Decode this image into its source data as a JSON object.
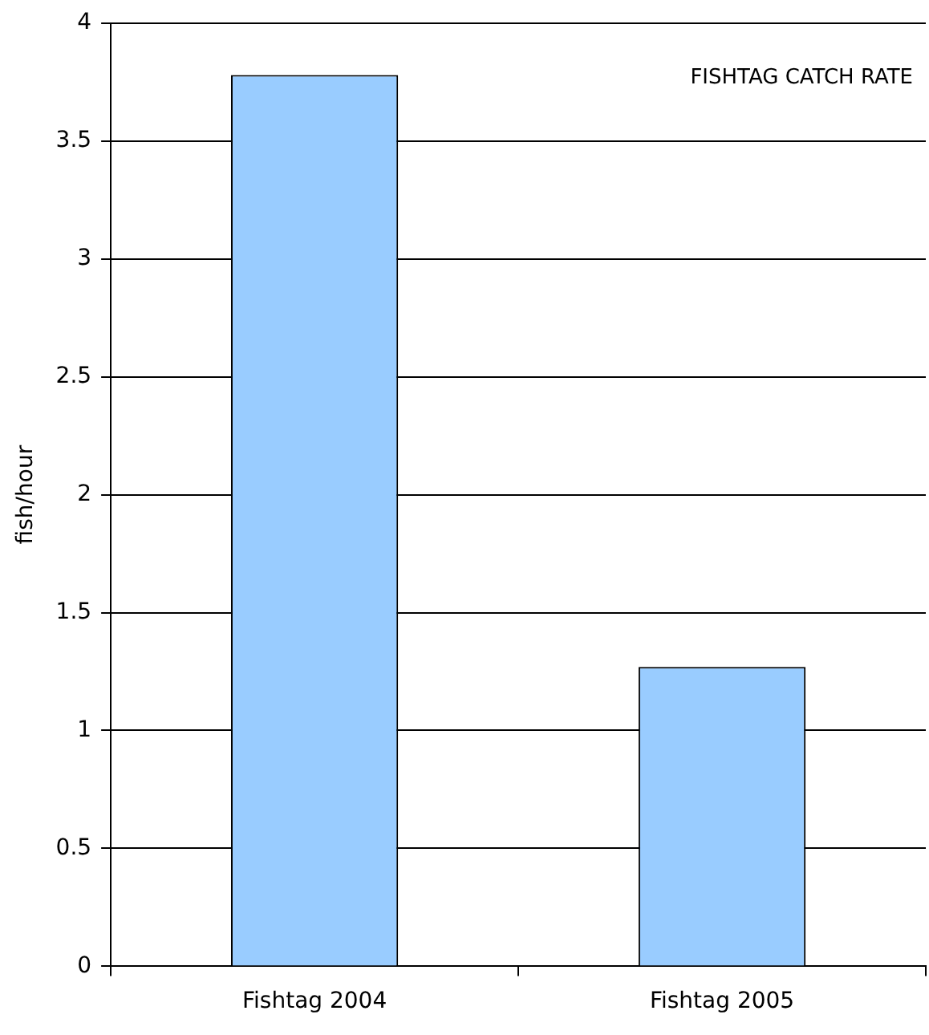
{
  "chart_data": {
    "type": "bar",
    "title": "FISHTAG CATCH RATE",
    "ylabel": "fish/hour",
    "categories": [
      "Fishtag 2004",
      "Fishtag 2005"
    ],
    "values": [
      3.78,
      1.27
    ],
    "color": "#99ccff",
    "ylim": [
      0,
      4
    ],
    "yticks": [
      0,
      0.5,
      1,
      1.5,
      2,
      2.5,
      3,
      3.5,
      4
    ],
    "grid": "y",
    "legend": false
  }
}
